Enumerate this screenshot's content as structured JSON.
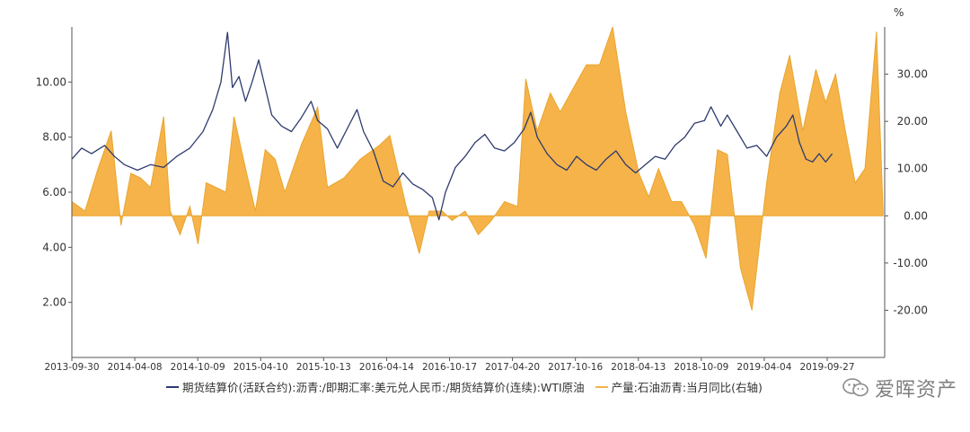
{
  "chart_data": {
    "type": "line+area",
    "y_left": {
      "ticks": [
        "2.00",
        "4.00",
        "6.00",
        "8.00",
        "10.00"
      ],
      "range": [
        0,
        12
      ]
    },
    "y_right": {
      "unit": "%",
      "ticks": [
        "-20.00",
        "-10.00",
        "0.00",
        "10.00",
        "20.00",
        "30.00"
      ],
      "range": [
        -30,
        40
      ]
    },
    "x_ticks": [
      "2013-09-30",
      "2014-04-08",
      "2014-10-09",
      "2015-04-10",
      "2015-10-13",
      "2016-04-14",
      "2016-10-17",
      "2017-04-20",
      "2017-10-16",
      "2018-04-13",
      "2018-10-09",
      "2019-04-04",
      "2019-09-27"
    ],
    "series": [
      {
        "name": "期货结算价(活跃合约):沥青:/即期汇率:美元兑人民币:/期货结算价(连续):WTI原油",
        "axis": "left",
        "kind": "line",
        "color": "#2e3a6e",
        "points": [
          [
            0.0,
            7.2
          ],
          [
            0.3,
            7.6
          ],
          [
            0.6,
            7.4
          ],
          [
            1.0,
            7.7
          ],
          [
            1.3,
            7.3
          ],
          [
            1.6,
            7.0
          ],
          [
            2.0,
            6.8
          ],
          [
            2.4,
            7.0
          ],
          [
            2.8,
            6.9
          ],
          [
            3.2,
            7.3
          ],
          [
            3.6,
            7.6
          ],
          [
            4.0,
            8.2
          ],
          [
            4.3,
            9.0
          ],
          [
            4.55,
            10.0
          ],
          [
            4.75,
            11.8
          ],
          [
            4.9,
            9.8
          ],
          [
            5.1,
            10.2
          ],
          [
            5.3,
            9.3
          ],
          [
            5.5,
            10.0
          ],
          [
            5.7,
            10.8
          ],
          [
            5.9,
            9.8
          ],
          [
            6.1,
            8.8
          ],
          [
            6.4,
            8.4
          ],
          [
            6.7,
            8.2
          ],
          [
            7.0,
            8.7
          ],
          [
            7.3,
            9.3
          ],
          [
            7.5,
            8.6
          ],
          [
            7.8,
            8.3
          ],
          [
            8.1,
            7.6
          ],
          [
            8.4,
            8.3
          ],
          [
            8.7,
            9.0
          ],
          [
            8.9,
            8.2
          ],
          [
            9.2,
            7.5
          ],
          [
            9.5,
            6.4
          ],
          [
            9.8,
            6.2
          ],
          [
            10.1,
            6.7
          ],
          [
            10.4,
            6.3
          ],
          [
            10.7,
            6.1
          ],
          [
            11.0,
            5.8
          ],
          [
            11.2,
            5.0
          ],
          [
            11.4,
            6.0
          ],
          [
            11.7,
            6.9
          ],
          [
            12.0,
            7.3
          ],
          [
            12.3,
            7.8
          ],
          [
            12.6,
            8.1
          ],
          [
            12.9,
            7.6
          ],
          [
            13.2,
            7.5
          ],
          [
            13.5,
            7.8
          ],
          [
            13.8,
            8.3
          ],
          [
            14.0,
            8.9
          ],
          [
            14.2,
            8.0
          ],
          [
            14.5,
            7.4
          ],
          [
            14.8,
            7.0
          ],
          [
            15.1,
            6.8
          ],
          [
            15.4,
            7.3
          ],
          [
            15.7,
            7.0
          ],
          [
            16.0,
            6.8
          ],
          [
            16.3,
            7.2
          ],
          [
            16.6,
            7.5
          ],
          [
            16.9,
            7.0
          ],
          [
            17.2,
            6.7
          ],
          [
            17.5,
            7.0
          ],
          [
            17.8,
            7.3
          ],
          [
            18.1,
            7.2
          ],
          [
            18.4,
            7.7
          ],
          [
            18.7,
            8.0
          ],
          [
            19.0,
            8.5
          ],
          [
            19.3,
            8.6
          ],
          [
            19.5,
            9.1
          ],
          [
            19.8,
            8.4
          ],
          [
            20.0,
            8.8
          ],
          [
            20.3,
            8.2
          ],
          [
            20.6,
            7.6
          ],
          [
            20.9,
            7.7
          ],
          [
            21.2,
            7.3
          ],
          [
            21.5,
            8.0
          ],
          [
            21.8,
            8.4
          ],
          [
            22.0,
            8.8
          ],
          [
            22.2,
            7.8
          ],
          [
            22.4,
            7.2
          ],
          [
            22.6,
            7.1
          ],
          [
            22.8,
            7.4
          ],
          [
            23.0,
            7.1
          ],
          [
            23.2,
            7.4
          ]
        ]
      },
      {
        "name": "产量:石油沥青:当月同比(右轴)",
        "axis": "right",
        "kind": "area",
        "color": "#f5b349",
        "points": [
          [
            0.0,
            3
          ],
          [
            0.4,
            1
          ],
          [
            0.8,
            10
          ],
          [
            1.2,
            18
          ],
          [
            1.5,
            -2
          ],
          [
            1.8,
            9
          ],
          [
            2.1,
            8
          ],
          [
            2.4,
            6
          ],
          [
            2.8,
            21
          ],
          [
            3.0,
            1
          ],
          [
            3.3,
            -4
          ],
          [
            3.6,
            2
          ],
          [
            3.85,
            -6
          ],
          [
            4.1,
            7
          ],
          [
            4.4,
            6
          ],
          [
            4.7,
            5
          ],
          [
            4.95,
            21
          ],
          [
            5.3,
            10
          ],
          [
            5.6,
            1
          ],
          [
            5.9,
            14
          ],
          [
            6.2,
            12
          ],
          [
            6.5,
            5
          ],
          [
            7.0,
            15
          ],
          [
            7.5,
            23
          ],
          [
            7.8,
            6
          ],
          [
            8.3,
            8
          ],
          [
            8.8,
            12
          ],
          [
            9.4,
            15
          ],
          [
            9.7,
            17
          ],
          [
            10.2,
            2
          ],
          [
            10.6,
            -8
          ],
          [
            10.9,
            1
          ],
          [
            11.3,
            1
          ],
          [
            11.6,
            -1
          ],
          [
            12.0,
            1
          ],
          [
            12.4,
            -4
          ],
          [
            12.8,
            -1
          ],
          [
            13.2,
            3
          ],
          [
            13.6,
            2
          ],
          [
            13.85,
            29
          ],
          [
            14.2,
            18
          ],
          [
            14.6,
            26
          ],
          [
            14.9,
            22
          ],
          [
            15.3,
            27
          ],
          [
            15.7,
            32
          ],
          [
            16.1,
            32
          ],
          [
            16.5,
            40
          ],
          [
            16.9,
            22
          ],
          [
            17.3,
            9
          ],
          [
            17.6,
            4
          ],
          [
            17.9,
            10
          ],
          [
            18.3,
            3
          ],
          [
            18.6,
            3
          ],
          [
            19.0,
            -2
          ],
          [
            19.35,
            -9
          ],
          [
            19.7,
            14
          ],
          [
            20.0,
            13
          ],
          [
            20.4,
            -11
          ],
          [
            20.75,
            -20
          ],
          [
            21.2,
            7
          ],
          [
            21.6,
            26
          ],
          [
            21.9,
            34
          ],
          [
            22.3,
            18
          ],
          [
            22.7,
            31
          ],
          [
            23.0,
            24
          ],
          [
            23.3,
            30
          ],
          [
            23.6,
            18
          ],
          [
            23.9,
            7
          ],
          [
            24.2,
            10
          ],
          [
            24.55,
            39
          ],
          [
            24.75,
            1
          ]
        ]
      }
    ],
    "legend_placement": "bottom"
  },
  "legend": {
    "item1": "期货结算价(活跃合约):沥青:/即期汇率:美元兑人民币:/期货结算价(连续):WTI原油",
    "item2": "产量:石油沥青:当月同比(右轴)"
  },
  "watermark": {
    "text": "爱晖资产",
    "icon": "wechat-icon"
  },
  "colors": {
    "line": "#2e3a6e",
    "area": "#f5b349",
    "axis": "#555555"
  }
}
